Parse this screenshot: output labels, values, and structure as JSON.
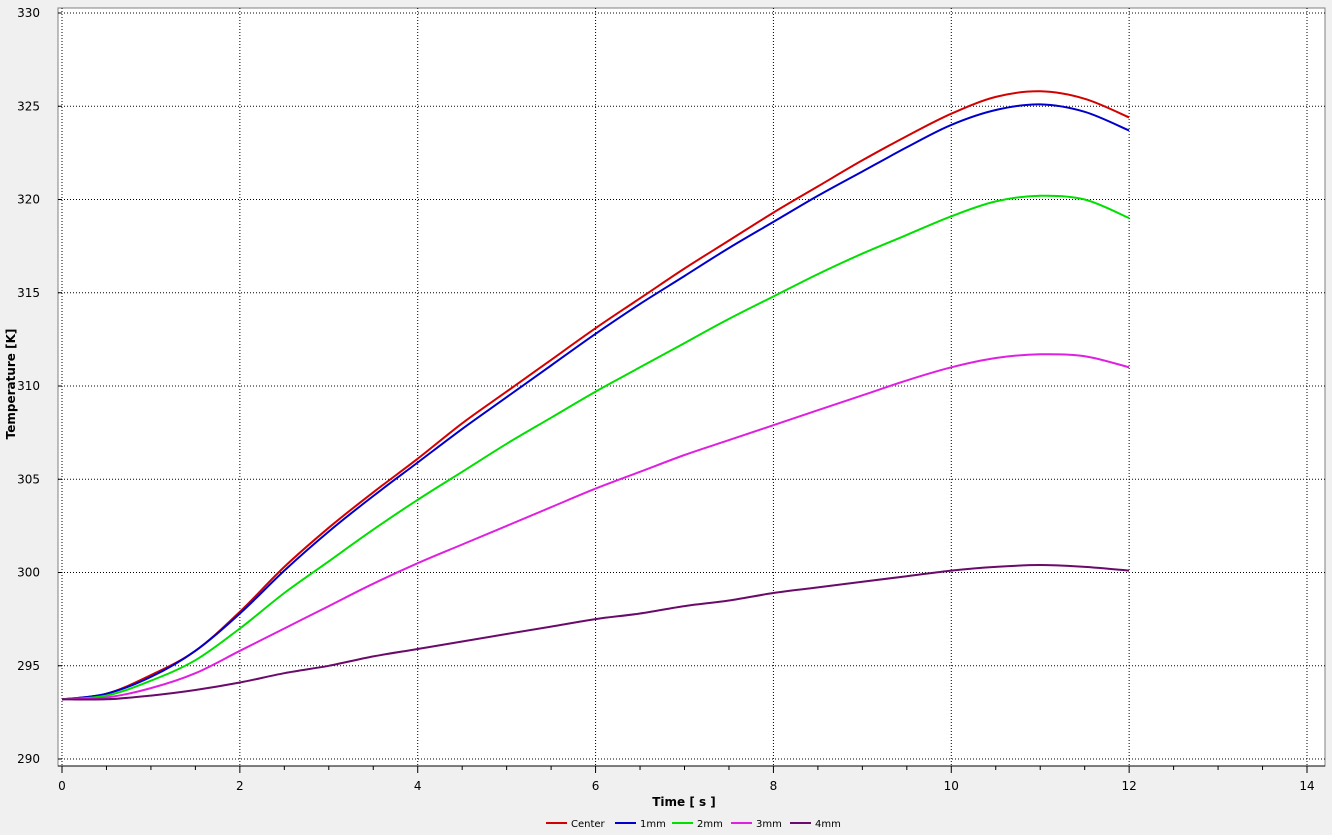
{
  "chart_data": {
    "type": "line",
    "xlabel": "Time [ s ]",
    "ylabel": "Temperature [K]",
    "xlim": [
      0,
      14
    ],
    "ylim": [
      290,
      330
    ],
    "xticks": [
      0,
      2,
      4,
      6,
      8,
      10,
      12,
      14
    ],
    "yticks": [
      290,
      295,
      300,
      305,
      310,
      315,
      320,
      325,
      330
    ],
    "grid": true,
    "legend_position": "bottom",
    "x": [
      0,
      0.5,
      1,
      1.5,
      2,
      2.5,
      3,
      3.5,
      4,
      4.5,
      5,
      5.5,
      6,
      6.5,
      7,
      7.5,
      8,
      8.5,
      9,
      9.5,
      10,
      10.5,
      11,
      11.5,
      12
    ],
    "series": [
      {
        "name": "Center",
        "color": "#d40000",
        "values": [
          293.2,
          293.5,
          294.5,
          295.8,
          297.9,
          300.3,
          302.4,
          304.3,
          306.1,
          308.0,
          309.7,
          311.4,
          313.1,
          314.7,
          316.3,
          317.8,
          319.3,
          320.7,
          322.1,
          323.4,
          324.6,
          325.5,
          325.8,
          325.4,
          324.4
        ]
      },
      {
        "name": "1mm",
        "color": "#0000cc",
        "values": [
          293.2,
          293.5,
          294.4,
          295.8,
          297.8,
          300.1,
          302.2,
          304.1,
          305.9,
          307.7,
          309.4,
          311.1,
          312.8,
          314.4,
          315.9,
          317.4,
          318.8,
          320.2,
          321.5,
          322.8,
          324.0,
          324.8,
          325.1,
          324.7,
          323.7
        ]
      },
      {
        "name": "2mm",
        "color": "#00e000",
        "values": [
          293.2,
          293.4,
          294.2,
          295.3,
          297.0,
          298.9,
          300.6,
          302.3,
          303.9,
          305.4,
          306.9,
          308.3,
          309.7,
          311.0,
          312.3,
          313.6,
          314.8,
          316.0,
          317.1,
          318.1,
          319.1,
          319.9,
          320.2,
          320.0,
          319.0
        ]
      },
      {
        "name": "3mm",
        "color": "#e020e0",
        "values": [
          293.2,
          293.3,
          293.8,
          294.6,
          295.8,
          297.0,
          298.2,
          299.4,
          300.5,
          301.5,
          302.5,
          303.5,
          304.5,
          305.4,
          306.3,
          307.1,
          307.9,
          308.7,
          309.5,
          310.3,
          311.0,
          311.5,
          311.7,
          311.6,
          311.0
        ]
      },
      {
        "name": "4mm",
        "color": "#6a0a6a",
        "values": [
          293.2,
          293.2,
          293.4,
          293.7,
          294.1,
          294.6,
          295.0,
          295.5,
          295.9,
          296.3,
          296.7,
          297.1,
          297.5,
          297.8,
          298.2,
          298.5,
          298.9,
          299.2,
          299.5,
          299.8,
          300.1,
          300.3,
          300.4,
          300.3,
          300.1
        ]
      }
    ]
  }
}
